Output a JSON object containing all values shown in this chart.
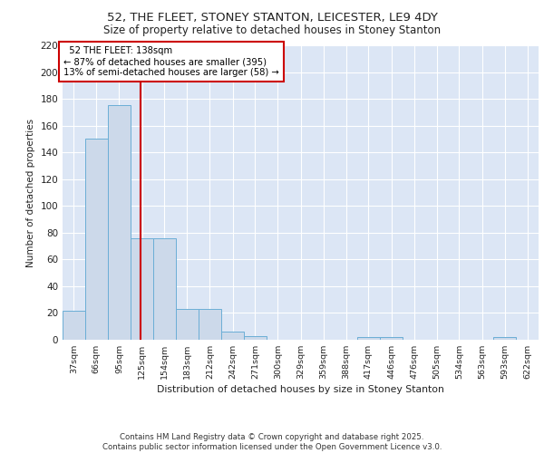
{
  "title1": "52, THE FLEET, STONEY STANTON, LEICESTER, LE9 4DY",
  "title2": "Size of property relative to detached houses in Stoney Stanton",
  "xlabel": "Distribution of detached houses by size in Stoney Stanton",
  "ylabel": "Number of detached properties",
  "bin_labels": [
    "37sqm",
    "66sqm",
    "95sqm",
    "125sqm",
    "154sqm",
    "183sqm",
    "212sqm",
    "242sqm",
    "271sqm",
    "300sqm",
    "329sqm",
    "359sqm",
    "388sqm",
    "417sqm",
    "446sqm",
    "476sqm",
    "505sqm",
    "534sqm",
    "563sqm",
    "593sqm",
    "622sqm"
  ],
  "bin_edges": [
    37,
    66,
    95,
    125,
    154,
    183,
    212,
    242,
    271,
    300,
    329,
    359,
    388,
    417,
    446,
    476,
    505,
    534,
    563,
    593,
    622,
    651
  ],
  "bar_heights": [
    22,
    150,
    175,
    76,
    76,
    23,
    23,
    6,
    3,
    0,
    0,
    0,
    0,
    2,
    2,
    0,
    0,
    0,
    0,
    2,
    0
  ],
  "bar_color": "#ccd9ea",
  "bar_edge_color": "#6baed6",
  "red_line_x": 138,
  "annotation_title": "52 THE FLEET: 138sqm",
  "annotation_line1": "← 87% of detached houses are smaller (395)",
  "annotation_line2": "13% of semi-detached houses are larger (58) →",
  "annotation_box_color": "#ffffff",
  "annotation_box_edge": "#cc0000",
  "red_line_color": "#cc0000",
  "background_color": "#dce6f5",
  "plot_bg_color": "#dce6f5",
  "grid_color": "#ffffff",
  "fig_bg_color": "#ffffff",
  "ylim": [
    0,
    220
  ],
  "yticks": [
    0,
    20,
    40,
    60,
    80,
    100,
    120,
    140,
    160,
    180,
    200,
    220
  ],
  "footer": "Contains HM Land Registry data © Crown copyright and database right 2025.\nContains public sector information licensed under the Open Government Licence v3.0."
}
